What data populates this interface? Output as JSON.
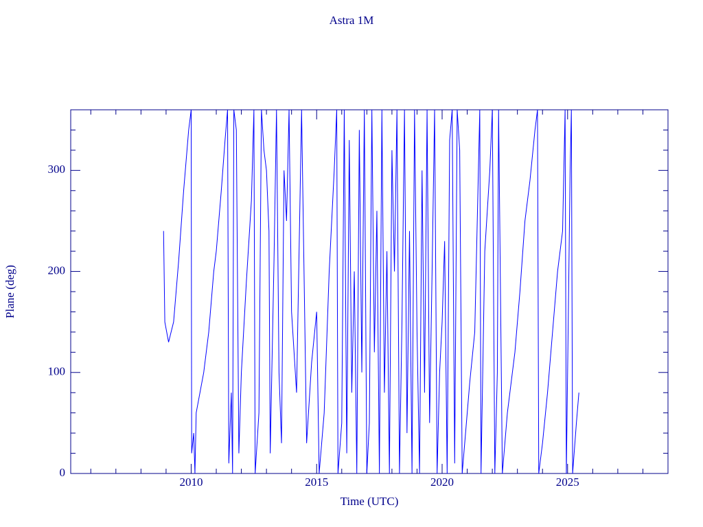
{
  "chart_data": {
    "type": "line",
    "title": "Astra 1M",
    "x_label": "Time (UTC)",
    "y_label": "Plane (deg)",
    "xlim": [
      2005.2,
      2029.0
    ],
    "ylim": [
      0,
      360
    ],
    "xticks": [
      2010,
      2015,
      2020,
      2025
    ],
    "yticks": [
      0,
      100,
      200,
      300
    ],
    "xminorticks": [
      2006,
      2007,
      2008,
      2009,
      2011,
      2012,
      2013,
      2014,
      2016,
      2017,
      2018,
      2019,
      2021,
      2022,
      2023,
      2024,
      2026,
      2027,
      2028
    ],
    "yminorticks": [
      20,
      40,
      60,
      80,
      120,
      140,
      160,
      180,
      220,
      240,
      260,
      280,
      320,
      340
    ],
    "axis_color": "#00008b",
    "series": [
      {
        "color": "#0000ff",
        "x": [
          2008.9,
          2008.95,
          2009.1,
          2009.3,
          2009.5,
          2009.7,
          2009.9,
          2010.0,
          2010.02,
          2010.1,
          2010.15,
          2010.2,
          2010.5,
          2010.7,
          2010.9,
          2011.0,
          2011.2,
          2011.35,
          2011.45,
          2011.5,
          2011.6,
          2011.65,
          2011.7,
          2011.8,
          2011.9,
          2012.0,
          2012.2,
          2012.4,
          2012.5,
          2012.55,
          2012.7,
          2012.8,
          2012.9,
          2013.0,
          2013.1,
          2013.15,
          2013.3,
          2013.4,
          2013.5,
          2013.6,
          2013.7,
          2013.8,
          2013.9,
          2014.0,
          2014.2,
          2014.4,
          2014.6,
          2014.8,
          2015.0,
          2015.1,
          2015.3,
          2015.5,
          2015.7,
          2015.8,
          2015.85,
          2016.0,
          2016.1,
          2016.2,
          2016.3,
          2016.4,
          2016.5,
          2016.6,
          2016.7,
          2016.8,
          2016.9,
          2017.0,
          2017.1,
          2017.2,
          2017.3,
          2017.4,
          2017.5,
          2017.6,
          2017.7,
          2017.8,
          2017.9,
          2018.0,
          2018.1,
          2018.2,
          2018.3,
          2018.4,
          2018.5,
          2018.6,
          2018.7,
          2018.8,
          2018.9,
          2019.0,
          2019.1,
          2019.2,
          2019.3,
          2019.4,
          2019.5,
          2019.6,
          2019.7,
          2019.8,
          2019.9,
          2020.0,
          2020.1,
          2020.2,
          2020.3,
          2020.4,
          2020.5,
          2020.6,
          2020.7,
          2020.8,
          2020.9,
          2021.1,
          2021.3,
          2021.5,
          2021.55,
          2021.7,
          2021.9,
          2022.0,
          2022.1,
          2022.2,
          2022.25,
          2022.4,
          2022.6,
          2022.9,
          2023.1,
          2023.3,
          2023.5,
          2023.7,
          2023.8,
          2023.85,
          2024.0,
          2024.2,
          2024.4,
          2024.6,
          2024.8,
          2024.9,
          2024.95,
          2025.1,
          2025.15,
          2025.2,
          2025.35,
          2025.45
        ],
        "values": [
          240,
          150,
          130,
          150,
          210,
          280,
          340,
          360,
          20,
          40,
          0,
          60,
          100,
          140,
          200,
          220,
          280,
          330,
          360,
          10,
          80,
          0,
          360,
          340,
          20,
          100,
          190,
          270,
          360,
          0,
          60,
          360,
          320,
          300,
          240,
          20,
          210,
          360,
          100,
          30,
          300,
          250,
          360,
          160,
          80,
          360,
          30,
          110,
          160,
          0,
          60,
          200,
          300,
          360,
          0,
          50,
          360,
          20,
          330,
          80,
          200,
          0,
          340,
          100,
          360,
          0,
          50,
          360,
          120,
          260,
          0,
          360,
          80,
          220,
          0,
          320,
          200,
          360,
          0,
          150,
          360,
          40,
          240,
          0,
          360,
          140,
          0,
          300,
          80,
          360,
          50,
          200,
          360,
          0,
          100,
          150,
          230,
          0,
          330,
          360,
          10,
          360,
          320,
          0,
          30,
          90,
          140,
          360,
          0,
          220,
          300,
          360,
          0,
          100,
          360,
          0,
          60,
          120,
          180,
          250,
          290,
          340,
          360,
          0,
          30,
          80,
          140,
          200,
          240,
          360,
          0,
          300,
          360,
          0,
          50,
          80
        ]
      }
    ]
  }
}
